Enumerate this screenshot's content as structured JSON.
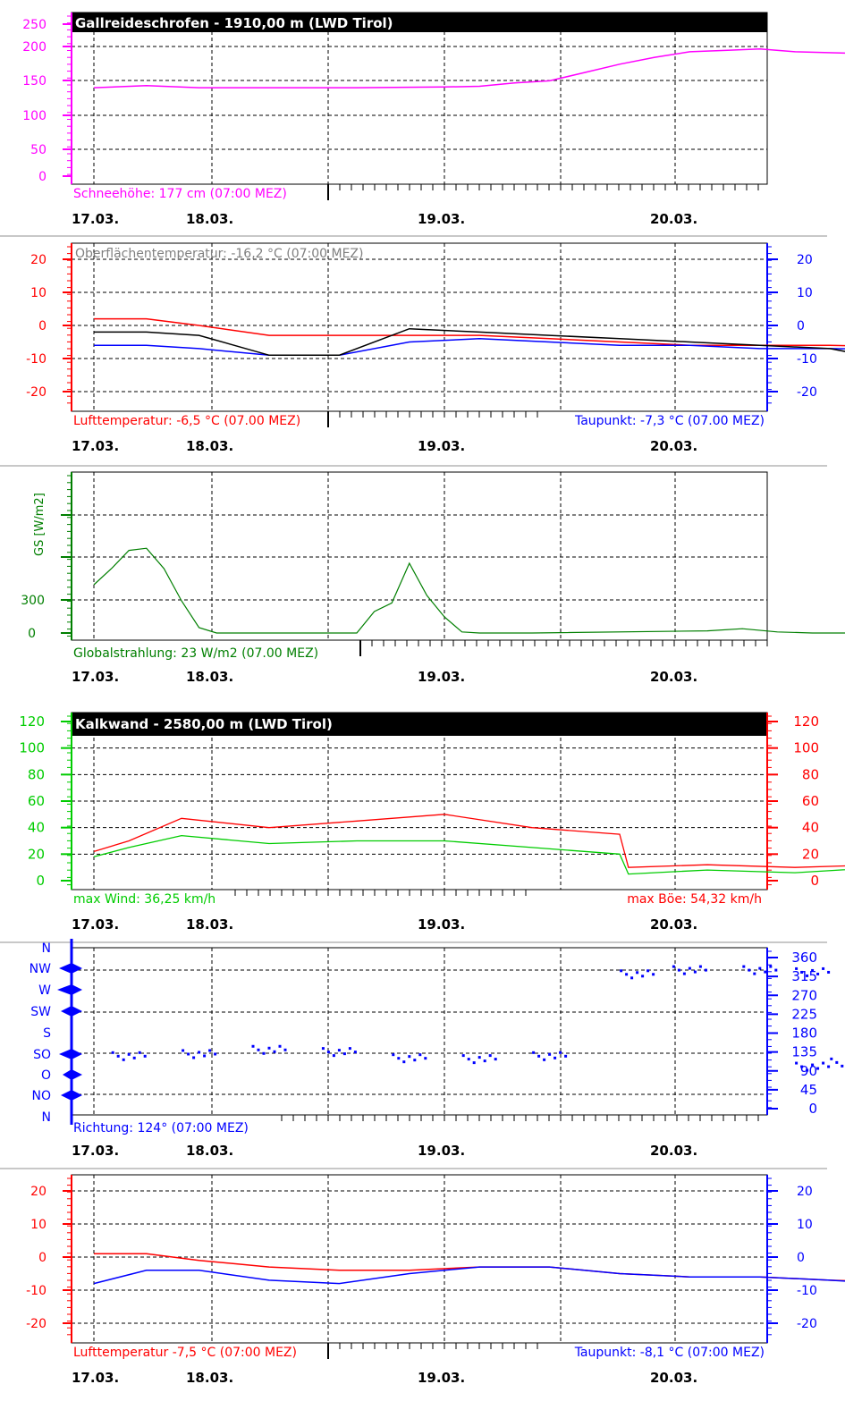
{
  "colors": {
    "magenta": "#ff00ff",
    "red": "#ff0000",
    "blue": "#0000ff",
    "black": "#000000",
    "green_dark": "#007f00",
    "green_light": "#00cc00",
    "gray": "#808080",
    "grid": "#000000",
    "separator": "#c8c8c8"
  },
  "dates": [
    "17.03.",
    "18.03.",
    "19.03.",
    "20.03."
  ],
  "panels": {
    "snow": {
      "header": "Gallreideschrofen - 1910,00 m (LWD Tirol)",
      "left_ticks": [
        "250",
        "200",
        "150",
        "100",
        "50",
        "0"
      ],
      "label_left": "Schneehöhe: 177 cm (07:00 MEZ)"
    },
    "temp1": {
      "left_ticks": [
        "20",
        "10",
        "0",
        "-10",
        "-20"
      ],
      "right_ticks": [
        "20",
        "10",
        "0",
        "-10",
        "-20"
      ],
      "label_top": "Oberflächentemperatur: -16,2 °C (07:00 MEZ)",
      "label_left": "Lufttemperatur: -6,5 °C (07.00 MEZ)",
      "label_right": "Taupunkt: -7,3 °C (07.00 MEZ)"
    },
    "radiation": {
      "ylabel": "GS [W/m2]",
      "left_ticks": [
        "300",
        "0"
      ],
      "label_left": "Globalstrahlung: 23 W/m2 (07.00 MEZ)"
    },
    "wind": {
      "header": "Kalkwand - 2580,00 m (LWD Tirol)",
      "left_ticks": [
        "120",
        "100",
        "80",
        "60",
        "40",
        "20",
        "0"
      ],
      "right_ticks": [
        "120",
        "100",
        "80",
        "60",
        "40",
        "20",
        "0"
      ],
      "label_left": "max Wind: 36,25 km/h",
      "label_right": "max Böe: 54,32 km/h"
    },
    "direction": {
      "left_ticks": [
        "N",
        "NW",
        "W",
        "SW",
        "S",
        "SO",
        "O",
        "NO",
        "N"
      ],
      "right_ticks": [
        "360",
        "315",
        "270",
        "225",
        "180",
        "135",
        "90",
        "45",
        "0"
      ],
      "label_left": "Richtung: 124° (07:00 MEZ)"
    },
    "temp2": {
      "left_ticks": [
        "20",
        "10",
        "0",
        "-10",
        "-20"
      ],
      "right_ticks": [
        "20",
        "10",
        "0",
        "-10",
        "-20"
      ],
      "label_left": "Lufttemperatur -7,5 °C (07:00 MEZ)",
      "label_right": "Taupunkt: -8,1 °C (07:00 MEZ)"
    }
  },
  "chart_data": [
    {
      "type": "line",
      "title": "Gallreideschrofen - 1910,00 m (LWD Tirol)",
      "x_unit": "day offset from 17.03. 00:00",
      "x_ticks": [
        "17.03.",
        "18.03.",
        "19.03.",
        "20.03."
      ],
      "ylim": [
        0,
        250
      ],
      "series": [
        {
          "name": "Schneehöhe",
          "color": "#ff00ff",
          "x": [
            0,
            0.3,
            0.6,
            1.0,
            1.5,
            2.0,
            2.2,
            2.4,
            2.6,
            2.8,
            3.0,
            3.2,
            3.4,
            3.6,
            3.8,
            4.0,
            4.3,
            4.58
          ],
          "y": [
            128,
            131,
            128,
            128,
            128,
            129,
            130,
            135,
            138,
            150,
            162,
            172,
            180,
            182,
            184,
            180,
            178,
            177
          ]
        }
      ]
    },
    {
      "type": "line",
      "x_unit": "day offset from 17.03. 00:00",
      "x_ticks": [
        "17.03.",
        "18.03.",
        "19.03.",
        "20.03."
      ],
      "ylim": [
        -25,
        25
      ],
      "series": [
        {
          "name": "Lufttemperatur",
          "color": "#ff0000",
          "x": [
            0,
            0.3,
            0.6,
            1.0,
            1.4,
            1.8,
            2.2,
            2.6,
            3.0,
            3.4,
            3.8,
            4.2,
            4.58
          ],
          "y": [
            2,
            2,
            0,
            -3,
            -3,
            -3,
            -3,
            -4,
            -5,
            -6,
            -6,
            -6,
            -6.5
          ]
        },
        {
          "name": "Taupunkt",
          "color": "#0000ff",
          "x": [
            0,
            0.3,
            0.6,
            1.0,
            1.4,
            1.8,
            2.2,
            2.6,
            3.0,
            3.4,
            3.8,
            4.2,
            4.58
          ],
          "y": [
            -6,
            -6,
            -7,
            -9,
            -9,
            -5,
            -4,
            -5,
            -6,
            -6,
            -7,
            -7,
            -7.3
          ]
        },
        {
          "name": "Oberflächentemperatur",
          "color": "#000000",
          "x": [
            0,
            0.3,
            0.6,
            1.0,
            1.4,
            1.8,
            2.2,
            2.6,
            3.0,
            3.4,
            3.8,
            4.2,
            4.4,
            4.58
          ],
          "y": [
            -2,
            -2,
            -3,
            -9,
            -9,
            -1,
            -2,
            -3,
            -4,
            -5,
            -6,
            -7,
            -9,
            -16.2
          ]
        }
      ]
    },
    {
      "type": "line",
      "x_unit": "day offset from 17.03. 00:00",
      "x_ticks": [
        "17.03.",
        "18.03.",
        "19.03.",
        "20.03."
      ],
      "ylabel": "GS [W/m2]",
      "series": [
        {
          "name": "Globalstrahlung",
          "color": "#007f00",
          "x": [
            0,
            0.1,
            0.2,
            0.3,
            0.4,
            0.5,
            0.6,
            0.7,
            0.8,
            1.5,
            1.6,
            1.7,
            1.8,
            1.9,
            2.0,
            2.1,
            2.2,
            2.3,
            2.4,
            2.5,
            3.5,
            3.7,
            3.9,
            4.1,
            4.3
          ],
          "y": [
            450,
            600,
            770,
            790,
            600,
            300,
            50,
            0,
            0,
            0,
            200,
            280,
            650,
            350,
            150,
            10,
            0,
            0,
            0,
            0,
            20,
            40,
            10,
            0,
            0
          ]
        }
      ]
    },
    {
      "type": "line",
      "title": "Kalkwand - 2580,00 m (LWD Tirol)",
      "x_unit": "day offset from 17.03. 00:00",
      "x_ticks": [
        "17.03.",
        "18.03.",
        "19.03.",
        "20.03."
      ],
      "ylim": [
        0,
        120
      ],
      "series": [
        {
          "name": "max Böe",
          "color": "#ff0000",
          "x": [
            0,
            0.2,
            0.5,
            1.0,
            1.5,
            2.0,
            2.5,
            3.0,
            3.05,
            3.5,
            4.0,
            4.5,
            4.58
          ],
          "y": [
            22,
            30,
            47,
            40,
            45,
            50,
            40,
            35,
            10,
            12,
            10,
            12,
            30
          ]
        },
        {
          "name": "max Wind",
          "color": "#00cc00",
          "x": [
            0,
            0.2,
            0.5,
            1.0,
            1.5,
            2.0,
            2.5,
            3.0,
            3.05,
            3.5,
            4.0,
            4.5,
            4.58
          ],
          "y": [
            18,
            25,
            34,
            28,
            30,
            30,
            25,
            20,
            5,
            8,
            6,
            10,
            25
          ]
        }
      ]
    },
    {
      "type": "scatter",
      "x_unit": "day offset from 17.03. 00:00",
      "x_ticks": [
        "17.03.",
        "18.03.",
        "19.03.",
        "20.03."
      ],
      "ylim": [
        0,
        360
      ],
      "series": [
        {
          "name": "Richtung",
          "color": "#0000ff",
          "x": [
            0.2,
            0.6,
            1.0,
            1.4,
            1.8,
            2.2,
            2.6,
            3.1,
            3.4,
            3.8,
            4.1,
            4.5,
            4.58,
            4.1,
            4.3
          ],
          "y": [
            125,
            130,
            140,
            135,
            120,
            118,
            125,
            320,
            330,
            330,
            325,
            118,
            124,
            100,
            110
          ]
        }
      ]
    },
    {
      "type": "line",
      "x_unit": "day offset from 17.03. 00:00",
      "x_ticks": [
        "17.03.",
        "18.03.",
        "19.03.",
        "20.03."
      ],
      "ylim": [
        -25,
        25
      ],
      "series": [
        {
          "name": "Lufttemperatur",
          "color": "#ff0000",
          "x": [
            0,
            0.3,
            0.6,
            1.0,
            1.4,
            1.8,
            2.2,
            2.6,
            3.0,
            3.4,
            3.8,
            4.2,
            4.58
          ],
          "y": [
            1,
            1,
            -1,
            -3,
            -4,
            -4,
            -3,
            -3,
            -5,
            -6,
            -6,
            -7,
            -7.5
          ]
        },
        {
          "name": "Taupunkt",
          "color": "#0000ff",
          "x": [
            0,
            0.3,
            0.6,
            1.0,
            1.4,
            1.8,
            2.2,
            2.6,
            3.0,
            3.4,
            3.8,
            4.2,
            4.58
          ],
          "y": [
            -8,
            -4,
            -4,
            -7,
            -8,
            -5,
            -3,
            -3,
            -5,
            -6,
            -6,
            -7,
            -8.1
          ]
        }
      ]
    }
  ]
}
